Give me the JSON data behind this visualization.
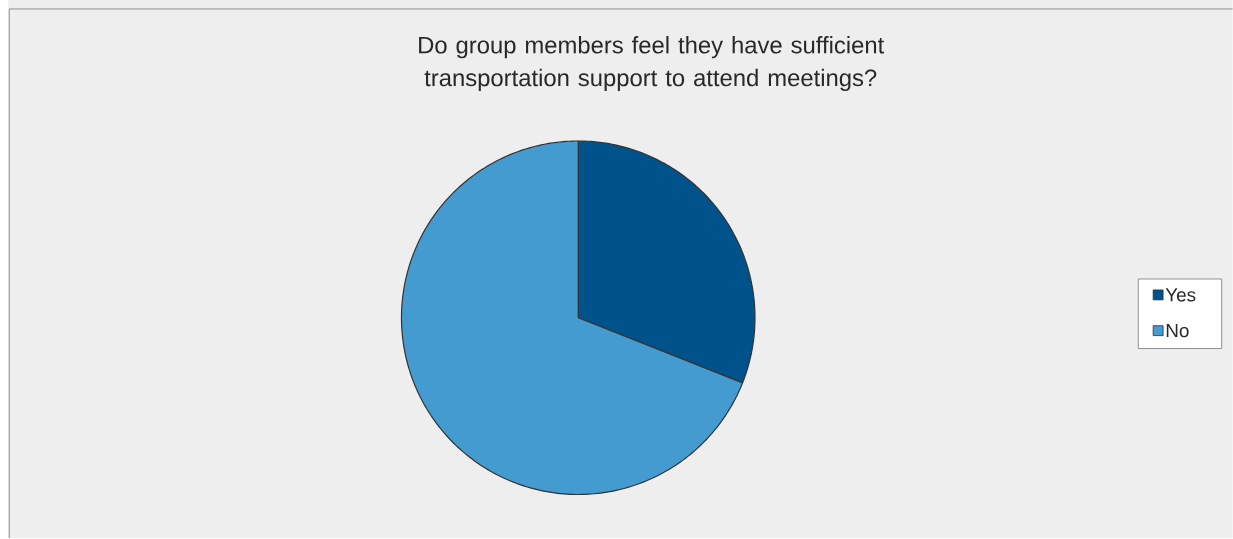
{
  "chart_data": {
    "type": "pie",
    "title": "Do group members feel they have sufficient transportation support to attend meetings?",
    "categories": [
      "Yes",
      "No"
    ],
    "values": [
      31,
      69
    ],
    "colors": [
      "#00538a",
      "#439bd0"
    ],
    "legend": "right"
  }
}
